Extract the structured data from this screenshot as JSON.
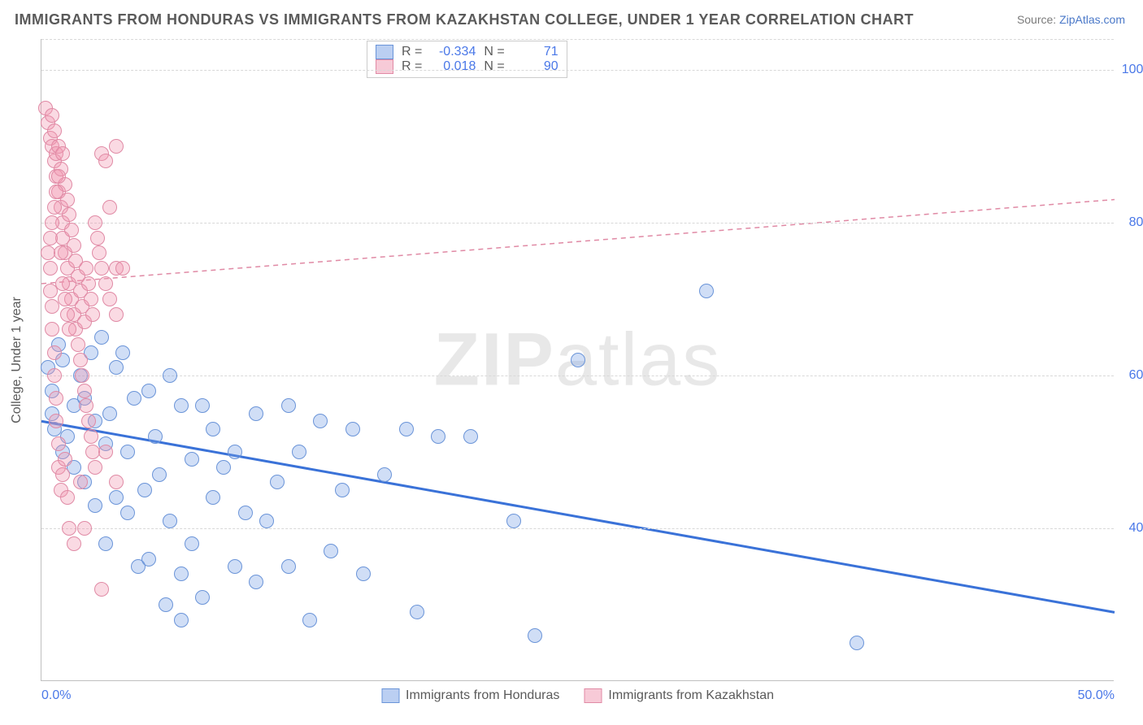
{
  "title": "IMMIGRANTS FROM HONDURAS VS IMMIGRANTS FROM KAZAKHSTAN COLLEGE, UNDER 1 YEAR CORRELATION CHART",
  "source_prefix": "Source: ",
  "source_link": "ZipAtlas.com",
  "ylabel": "College, Under 1 year",
  "watermark_bold": "ZIP",
  "watermark_light": "atlas",
  "chart": {
    "type": "scatter",
    "xlim": [
      0,
      50
    ],
    "ylim": [
      20,
      104
    ],
    "x_ticks": [
      {
        "v": 0,
        "label": "0.0%"
      },
      {
        "v": 50,
        "label": "50.0%"
      }
    ],
    "y_ticks": [
      {
        "v": 40,
        "label": "40.0%"
      },
      {
        "v": 60,
        "label": "60.0%"
      },
      {
        "v": 80,
        "label": "80.0%"
      },
      {
        "v": 100,
        "label": "100.0%"
      }
    ],
    "grid_color": "#d8d8d8",
    "axis_color": "#c0c0c0",
    "background_color": "#ffffff",
    "marker_size": 18,
    "series": [
      {
        "name": "Immigrants from Honduras",
        "color_fill": "rgba(120,160,230,0.35)",
        "color_stroke": "#6a94d8",
        "R": "-0.334",
        "N": "71",
        "trend": {
          "x1": 0,
          "y1": 54,
          "x2": 50,
          "y2": 29,
          "stroke": "#3a72d8",
          "width": 3,
          "dash": "none"
        },
        "points": [
          [
            0.3,
            61
          ],
          [
            0.5,
            58
          ],
          [
            0.5,
            55
          ],
          [
            0.6,
            53
          ],
          [
            0.8,
            64
          ],
          [
            1.0,
            62
          ],
          [
            1.0,
            50
          ],
          [
            1.2,
            52
          ],
          [
            1.5,
            56
          ],
          [
            1.5,
            48
          ],
          [
            1.8,
            60
          ],
          [
            2.0,
            57
          ],
          [
            2.0,
            46
          ],
          [
            2.3,
            63
          ],
          [
            2.5,
            54
          ],
          [
            2.5,
            43
          ],
          [
            2.8,
            65
          ],
          [
            3.0,
            51
          ],
          [
            3.0,
            38
          ],
          [
            3.2,
            55
          ],
          [
            3.5,
            61
          ],
          [
            3.5,
            44
          ],
          [
            3.8,
            63
          ],
          [
            4.0,
            50
          ],
          [
            4.0,
            42
          ],
          [
            4.3,
            57
          ],
          [
            4.5,
            35
          ],
          [
            4.8,
            45
          ],
          [
            5.0,
            58
          ],
          [
            5.0,
            36
          ],
          [
            5.3,
            52
          ],
          [
            5.5,
            47
          ],
          [
            5.8,
            30
          ],
          [
            6.0,
            60
          ],
          [
            6.0,
            41
          ],
          [
            6.5,
            56
          ],
          [
            6.5,
            34
          ],
          [
            7.0,
            49
          ],
          [
            7.0,
            38
          ],
          [
            7.5,
            56
          ],
          [
            7.5,
            31
          ],
          [
            8.0,
            53
          ],
          [
            8.0,
            44
          ],
          [
            8.5,
            48
          ],
          [
            9.0,
            50
          ],
          [
            9.0,
            35
          ],
          [
            9.5,
            42
          ],
          [
            10.0,
            55
          ],
          [
            10.0,
            33
          ],
          [
            10.5,
            41
          ],
          [
            11.0,
            46
          ],
          [
            11.5,
            56
          ],
          [
            11.5,
            35
          ],
          [
            12.0,
            50
          ],
          [
            12.5,
            28
          ],
          [
            13.0,
            54
          ],
          [
            13.5,
            37
          ],
          [
            14.0,
            45
          ],
          [
            14.5,
            53
          ],
          [
            15.0,
            34
          ],
          [
            16.0,
            47
          ],
          [
            17.0,
            53
          ],
          [
            17.5,
            29
          ],
          [
            18.5,
            52
          ],
          [
            20.0,
            52
          ],
          [
            22.0,
            41
          ],
          [
            23.0,
            26
          ],
          [
            25.0,
            62
          ],
          [
            31.0,
            71
          ],
          [
            38.0,
            25
          ],
          [
            6.5,
            28
          ]
        ]
      },
      {
        "name": "Immigrants from Kazakhstan",
        "color_fill": "rgba(240,150,175,0.35)",
        "color_stroke": "#e08aa5",
        "R": "0.018",
        "N": "90",
        "trend": {
          "x1": 0,
          "y1": 72,
          "x2": 50,
          "y2": 83,
          "stroke": "#e08aa5",
          "width": 1.5,
          "dash": "6,5"
        },
        "points": [
          [
            0.2,
            95
          ],
          [
            0.3,
            93
          ],
          [
            0.4,
            91
          ],
          [
            0.5,
            94
          ],
          [
            0.5,
            90
          ],
          [
            0.6,
            88
          ],
          [
            0.6,
            92
          ],
          [
            0.7,
            89
          ],
          [
            0.7,
            86
          ],
          [
            0.8,
            90
          ],
          [
            0.8,
            84
          ],
          [
            0.9,
            87
          ],
          [
            0.9,
            82
          ],
          [
            1.0,
            89
          ],
          [
            1.0,
            80
          ],
          [
            1.0,
            78
          ],
          [
            1.1,
            85
          ],
          [
            1.1,
            76
          ],
          [
            1.2,
            83
          ],
          [
            1.2,
            74
          ],
          [
            1.3,
            81
          ],
          [
            1.3,
            72
          ],
          [
            1.4,
            79
          ],
          [
            1.4,
            70
          ],
          [
            1.5,
            77
          ],
          [
            1.5,
            68
          ],
          [
            1.6,
            75
          ],
          [
            1.6,
            66
          ],
          [
            1.7,
            73
          ],
          [
            1.7,
            64
          ],
          [
            1.8,
            71
          ],
          [
            1.8,
            62
          ],
          [
            1.9,
            69
          ],
          [
            1.9,
            60
          ],
          [
            2.0,
            67
          ],
          [
            2.0,
            58
          ],
          [
            2.1,
            74
          ],
          [
            2.1,
            56
          ],
          [
            2.2,
            72
          ],
          [
            2.2,
            54
          ],
          [
            2.3,
            70
          ],
          [
            2.3,
            52
          ],
          [
            2.4,
            68
          ],
          [
            2.4,
            50
          ],
          [
            2.5,
            80
          ],
          [
            2.5,
            48
          ],
          [
            2.6,
            78
          ],
          [
            2.7,
            76
          ],
          [
            2.8,
            89
          ],
          [
            2.8,
            74
          ],
          [
            3.0,
            88
          ],
          [
            3.0,
            72
          ],
          [
            3.2,
            82
          ],
          [
            3.2,
            70
          ],
          [
            3.5,
            90
          ],
          [
            3.5,
            68
          ],
          [
            3.5,
            46
          ],
          [
            0.3,
            76
          ],
          [
            0.4,
            74
          ],
          [
            0.4,
            71
          ],
          [
            0.5,
            69
          ],
          [
            0.5,
            66
          ],
          [
            0.6,
            63
          ],
          [
            0.6,
            60
          ],
          [
            0.7,
            57
          ],
          [
            0.7,
            54
          ],
          [
            0.8,
            51
          ],
          [
            0.8,
            48
          ],
          [
            0.9,
            45
          ],
          [
            1.0,
            47
          ],
          [
            1.1,
            49
          ],
          [
            1.2,
            44
          ],
          [
            1.3,
            40
          ],
          [
            1.5,
            38
          ],
          [
            1.8,
            46
          ],
          [
            2.0,
            40
          ],
          [
            0.4,
            78
          ],
          [
            0.5,
            80
          ],
          [
            0.6,
            82
          ],
          [
            0.7,
            84
          ],
          [
            0.8,
            86
          ],
          [
            0.9,
            76
          ],
          [
            1.0,
            72
          ],
          [
            1.1,
            70
          ],
          [
            1.2,
            68
          ],
          [
            1.3,
            66
          ],
          [
            2.8,
            32
          ],
          [
            3.0,
            50
          ],
          [
            3.5,
            74
          ],
          [
            3.8,
            74
          ]
        ]
      }
    ]
  },
  "legend_labels": {
    "R": "R =",
    "N": "N ="
  }
}
